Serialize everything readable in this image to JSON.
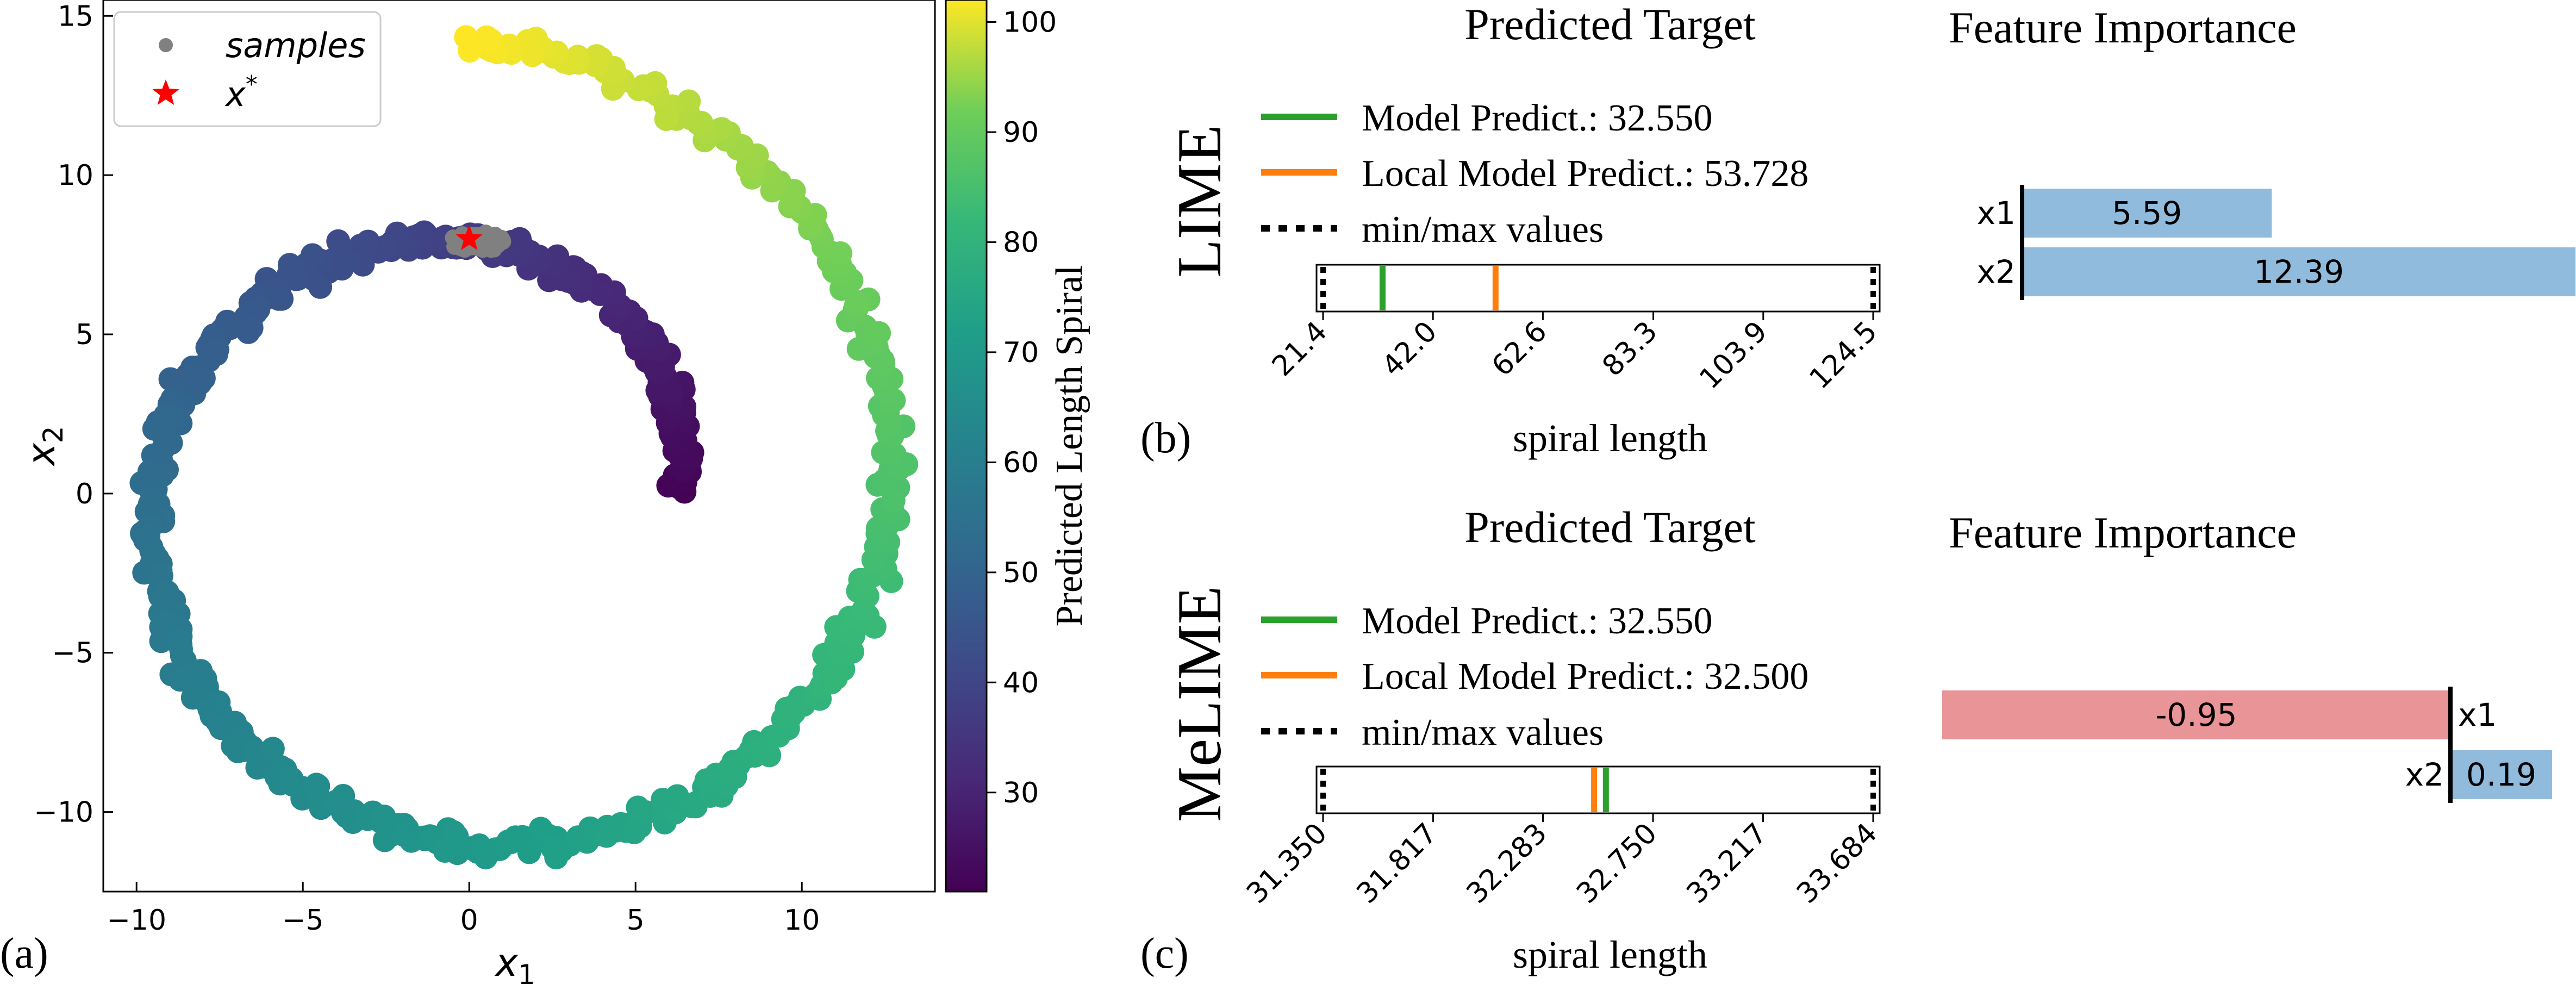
{
  "chart_data": [
    {
      "type": "scatter",
      "panel_label": "(a)",
      "xlabel": "x",
      "xlabel_sub": "1",
      "ylabel": "x",
      "ylabel_sub": "2",
      "xlim": [
        -11,
        14
      ],
      "ylim": [
        -12.5,
        15.5
      ],
      "xticks": [
        -10,
        -5,
        0,
        5,
        10
      ],
      "yticks": [
        -10,
        -5,
        0,
        5,
        10,
        15
      ],
      "xtick_labels": [
        "−10",
        "−5",
        "0",
        "5",
        "10"
      ],
      "ytick_labels": [
        "−10",
        "−5",
        "0",
        "5",
        "10",
        "15"
      ],
      "spiral": {
        "theta_start": 0,
        "theta_end": 7.854,
        "a": 6.37,
        "b": 0.993,
        "point_count": 700,
        "jitter": 0.35
      },
      "samples": {
        "center": [
          0.3,
          7.9
        ],
        "spread": [
          0.6,
          0.25
        ],
        "count": 120
      },
      "x_star": [
        0,
        8
      ],
      "legend": {
        "placement": "upper-left",
        "entries": [
          "samples",
          "x",
          "*"
        ]
      },
      "colorbar": {
        "label": "Predicted Length Spiral",
        "range": [
          21,
          102
        ],
        "ticks": [
          30,
          40,
          50,
          60,
          70,
          80,
          90,
          100
        ],
        "tick_labels": [
          "30",
          "40",
          "50",
          "60",
          "70",
          "80",
          "90",
          "100"
        ]
      },
      "colors": {
        "samples": "#808080",
        "x_star": "#ff0000"
      }
    },
    {
      "type": "bar",
      "panel_label": "(b)",
      "method": "LIME",
      "target_title": "Predicted Target",
      "importance_title": "Feature Importance",
      "legend": [
        "Model Predict.: 32.550",
        "Local Model Predict.: 53.728",
        "min/max values"
      ],
      "target_range": [
        21.4,
        124.5
      ],
      "model_predict": 32.55,
      "local_model_predict": 53.728,
      "range_ticks": [
        21.4,
        42.0,
        62.6,
        83.3,
        103.9,
        124.5
      ],
      "range_tick_labels": [
        "21.4",
        "42.0",
        "62.6",
        "83.3",
        "103.9",
        "124.5"
      ],
      "range_xlabel": "spiral length",
      "categories": [
        "x1",
        "x2"
      ],
      "values": [
        5.59,
        12.39
      ],
      "value_labels": [
        "5.59",
        "12.39"
      ],
      "importance_xlim": [
        0,
        12.4
      ]
    },
    {
      "type": "bar",
      "panel_label": "(c)",
      "method": "MeLIME",
      "target_title": "Predicted Target",
      "importance_title": "Feature Importance",
      "legend": [
        "Model Predict.: 32.550",
        "Local Model Predict.: 32.500",
        "min/max values"
      ],
      "target_range": [
        31.35,
        33.684
      ],
      "model_predict": 32.55,
      "local_model_predict": 32.5,
      "range_ticks": [
        31.35,
        31.817,
        32.283,
        32.75,
        33.217,
        33.684
      ],
      "range_tick_labels": [
        "31.350",
        "31.817",
        "32.283",
        "32.750",
        "33.217",
        "33.684"
      ],
      "range_xlabel": "spiral length",
      "categories": [
        "x1",
        "x2"
      ],
      "values": [
        -0.95,
        0.19
      ],
      "value_labels": [
        "-0.95",
        "0.19"
      ],
      "importance_xlim": [
        -0.95,
        0.23
      ]
    }
  ],
  "colors": {
    "model_predict": "#2ca02c",
    "local_model_predict": "#ff7f0e",
    "positive_bar": "#91bbdc",
    "negative_bar": "#e99497",
    "axis": "#000000"
  }
}
